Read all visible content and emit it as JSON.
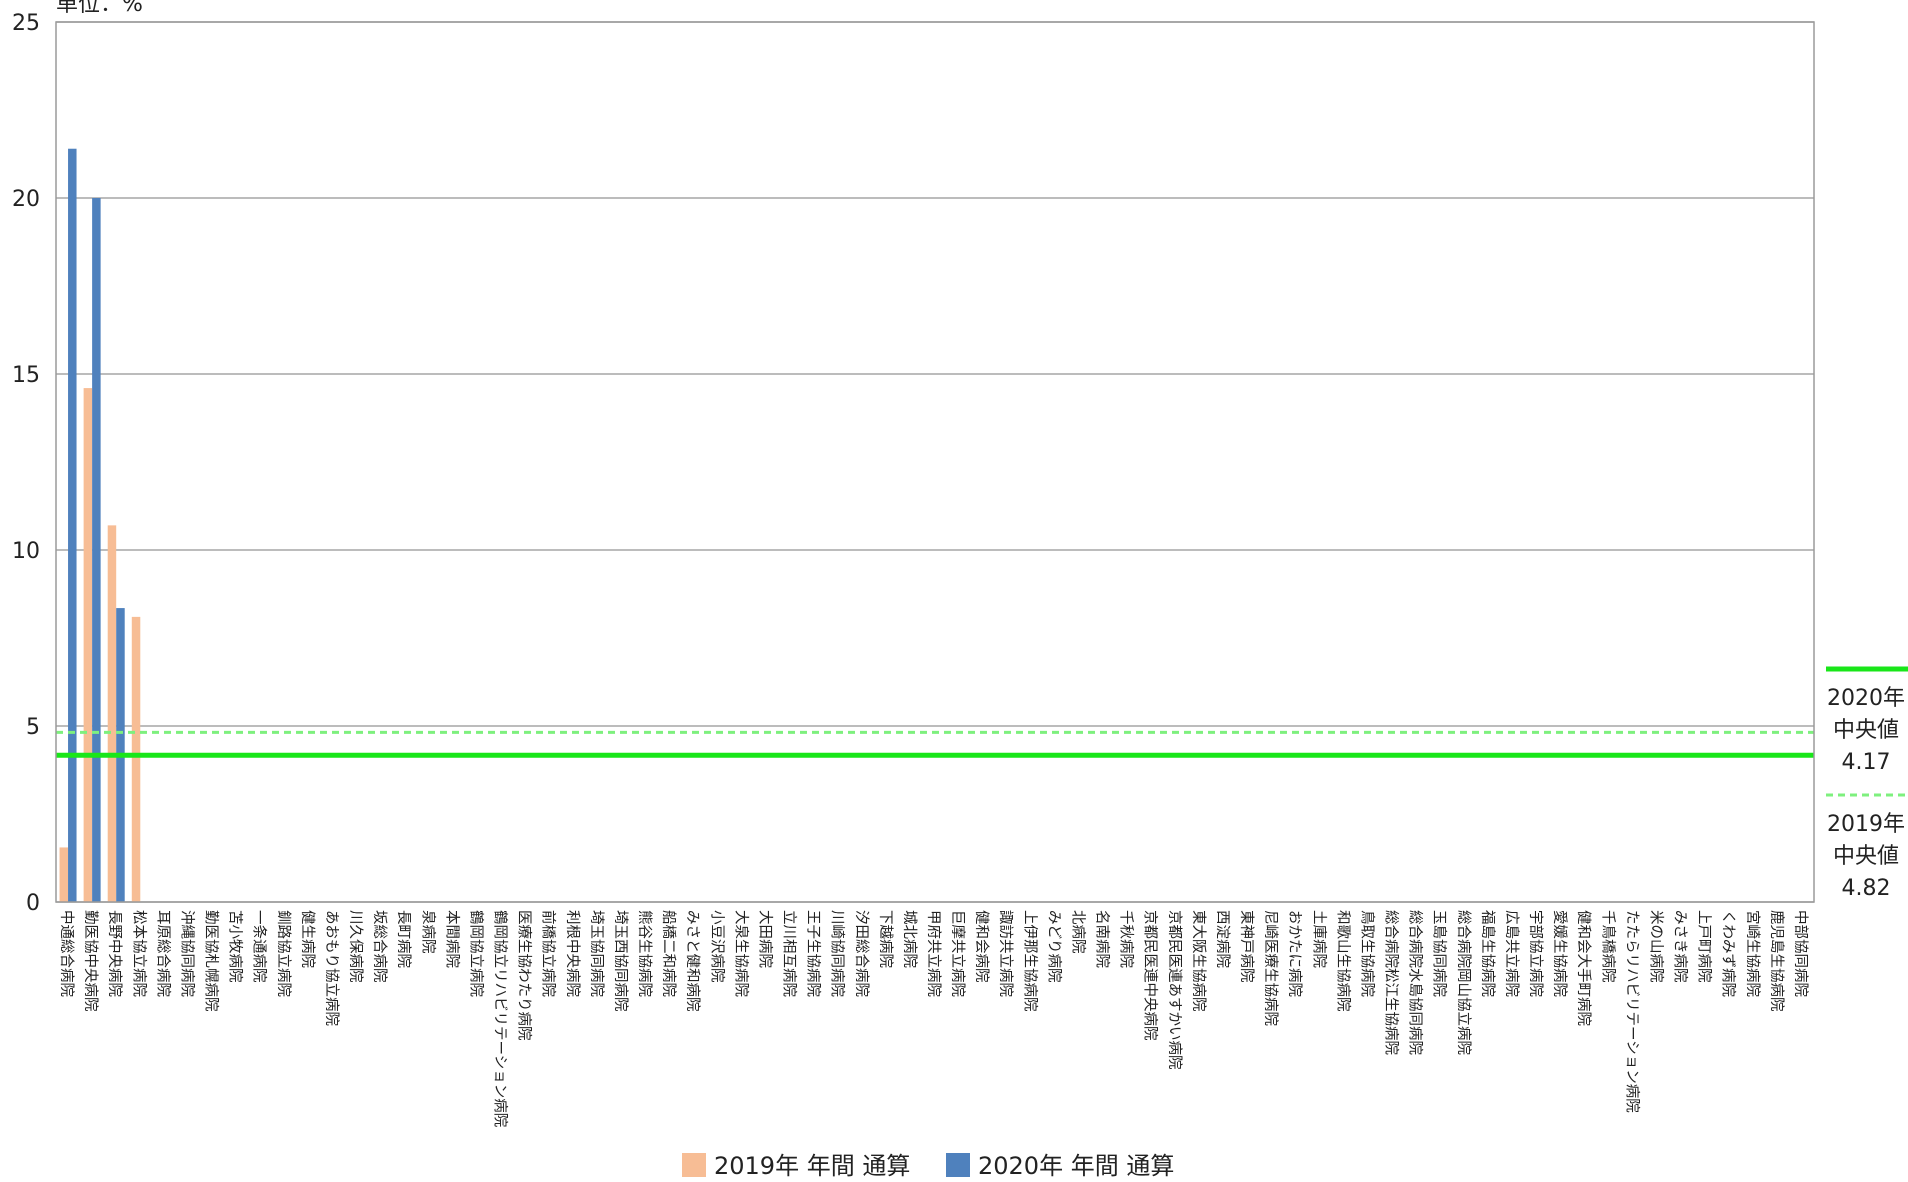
{
  "chart_data": {
    "type": "bar",
    "unit_label": "単位：%",
    "ylim": [
      0,
      25
    ],
    "yticks": [
      "0",
      "5",
      "10",
      "15",
      "20",
      "25"
    ],
    "grid": true,
    "legend_position": "bottom",
    "categories": [
      "中通総合病院",
      "勤医協中央病院",
      "長野中央病院",
      "松本協立病院",
      "耳原総合病院",
      "沖縄協同病院",
      "勤医協札幌病院",
      "苫小牧病院",
      "一条通病院",
      "釧路協立病院",
      "健生病院",
      "あおもり協立病院",
      "川久保病院",
      "坂総合病院",
      "長町病院",
      "泉病院",
      "本間病院",
      "鶴岡協立病院",
      "鶴岡協立リハビリテーション病院",
      "医療生協わたり病院",
      "前橋協立病院",
      "利根中央病院",
      "埼玉協同病院",
      "埼玉西協同病院",
      "熊谷生協病院",
      "船橋二和病院",
      "みさと健和病院",
      "小豆沢病院",
      "大泉生協病院",
      "大田病院",
      "立川相互病院",
      "王子生協病院",
      "川崎協同病院",
      "汐田総合病院",
      "下越病院",
      "城北病院",
      "甲府共立病院",
      "巨摩共立病院",
      "健和会病院",
      "諏訪共立病院",
      "上伊那生協病院",
      "みどり病院",
      "北病院",
      "名南病院",
      "千秋病院",
      "京都民医連中央病院",
      "京都民医連あすかい病院",
      "東大阪生協病院",
      "西淀病院",
      "東神戸病院",
      "尼崎医療生協病院",
      "おかたに病院",
      "土庫病院",
      "和歌山生協病院",
      "鳥取生協病院",
      "総合病院松江生協病院",
      "総合病院水島協同病院",
      "玉島協同病院",
      "総合病院岡山協立病院",
      "福島生協病院",
      "広島共立病院",
      "宇部協立病院",
      "愛媛生協病院",
      "健和会大手町病院",
      "千鳥橋病院",
      "たたらリハビリテーション病院",
      "米の山病院",
      "みさき病院",
      "上戸町病院",
      "くわみず病院",
      "宮崎生協病院",
      "鹿児島生協病院",
      "中部協同病院"
    ],
    "series": [
      {
        "name": "2019年 年間 通算",
        "color": "#f7bd95",
        "values": [
          1.55,
          14.6,
          10.7,
          8.1,
          null,
          null,
          null,
          null,
          null,
          null,
          null,
          null,
          null,
          null,
          null,
          null,
          null,
          null,
          null,
          null,
          null,
          null,
          null,
          null,
          null,
          null,
          null,
          null,
          null,
          null,
          null,
          null,
          null,
          null,
          null,
          null,
          null,
          null,
          null,
          null,
          null,
          null,
          null,
          null,
          null,
          null,
          null,
          null,
          null,
          null,
          null,
          null,
          null,
          null,
          null,
          null,
          null,
          null,
          null,
          null,
          null,
          null,
          null,
          null,
          null,
          null,
          null,
          null,
          null,
          null,
          null,
          null,
          null
        ]
      },
      {
        "name": "2020年 年間 通算",
        "color": "#4f81bd",
        "values": [
          21.4,
          20.0,
          8.35,
          null,
          null,
          null,
          null,
          null,
          null,
          null,
          null,
          null,
          null,
          null,
          null,
          null,
          null,
          null,
          null,
          null,
          null,
          null,
          null,
          null,
          null,
          null,
          null,
          null,
          null,
          null,
          null,
          null,
          null,
          null,
          null,
          null,
          null,
          null,
          null,
          null,
          null,
          null,
          null,
          null,
          null,
          null,
          null,
          null,
          null,
          null,
          null,
          null,
          null,
          null,
          null,
          null,
          null,
          null,
          null,
          null,
          null,
          null,
          null,
          null,
          null,
          null,
          null,
          null,
          null,
          null,
          null,
          null,
          null
        ]
      }
    ],
    "reference_lines": [
      {
        "year_label": "2020年",
        "stat_label": "中央値",
        "value_label": "4.17",
        "value": 4.17,
        "color": "#19e619",
        "style": "solid"
      },
      {
        "year_label": "2019年",
        "stat_label": "中央値",
        "value_label": "4.82",
        "value": 4.82,
        "color": "#7ef07e",
        "style": "dashed"
      }
    ]
  }
}
